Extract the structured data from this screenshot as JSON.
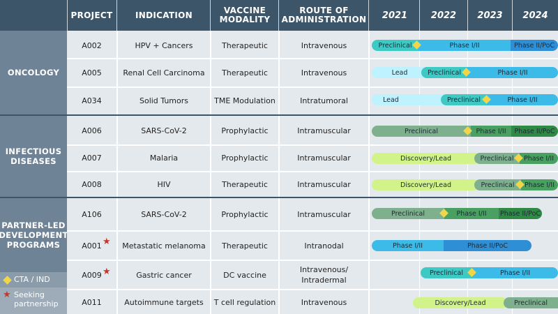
{
  "header": {
    "project": "PROJECT",
    "indication": "INDICATION",
    "modality": "VACCINE MODALITY",
    "route": "ROUTE OF ADMINISTRATION",
    "years": [
      "2021",
      "2022",
      "2023",
      "2024"
    ]
  },
  "groups": {
    "oncology": "ONCOLOGY",
    "infectious": "INFECTIOUS DISEASES",
    "partner": "PARTNER-LED DEVELOPMENT PROGRAMS"
  },
  "legend": {
    "cta": "CTA / IND",
    "seeking": "Seeking partnership"
  },
  "rows": [
    {
      "project": "A002",
      "indication": "HPV + Cancers",
      "modality": "Therapeutic",
      "route": "Intravenous"
    },
    {
      "project": "A005",
      "indication": "Renal Cell Carcinoma",
      "modality": "Therapeutic",
      "route": "Intravenous"
    },
    {
      "project": "A034",
      "indication": "Solid Tumors",
      "modality": "TME Modulation",
      "route": "Intratumoral"
    },
    {
      "project": "A006",
      "indication": "SARS-CoV-2",
      "modality": "Prophylactic",
      "route": "Intramuscular"
    },
    {
      "project": "A007",
      "indication": "Malaria",
      "modality": "Prophylactic",
      "route": "Intramuscular"
    },
    {
      "project": "A008",
      "indication": "HIV",
      "modality": "Therapeutic",
      "route": "Intramuscular"
    },
    {
      "project": "A106",
      "indication": "SARS-CoV-2",
      "modality": "Prophylactic",
      "route": "Intramuscular"
    },
    {
      "project": "A001",
      "indication": "Metastatic melanoma",
      "modality": "Therapeutic",
      "route": "Intranodal"
    },
    {
      "project": "A009",
      "indication": "Gastric cancer",
      "modality": "DC vaccine",
      "route": "Intravenous/ Intradermal"
    },
    {
      "project": "A011",
      "indication": "Autoimmune targets",
      "modality": "T cell regulation",
      "route": "Intravenous"
    }
  ],
  "colors": {
    "header": "#3d5568",
    "group": "#6f8396",
    "cta_diamond": "#f2d648",
    "star": "#c0392b"
  }
}
